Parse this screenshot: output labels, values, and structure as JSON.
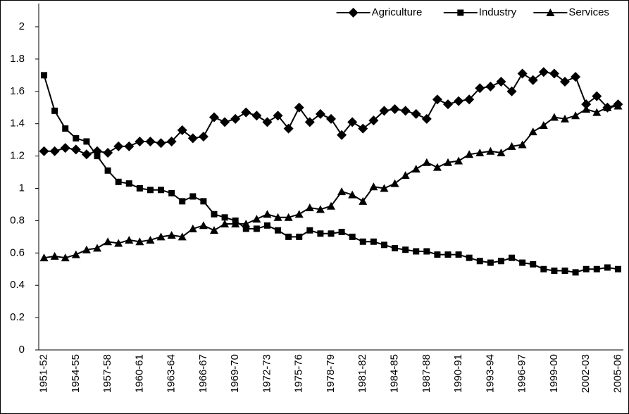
{
  "chart_data": {
    "type": "line",
    "categories": [
      "1951-52",
      null,
      null,
      "1954-55",
      null,
      null,
      "1957-58",
      null,
      null,
      "1960-61",
      null,
      null,
      "1963-64",
      null,
      null,
      "1966-67",
      null,
      null,
      "1969-70",
      null,
      null,
      "1972-73",
      null,
      null,
      "1975-76",
      null,
      null,
      "1978-79",
      null,
      null,
      "1981-82",
      null,
      null,
      "1984-85",
      null,
      null,
      "1987-88",
      null,
      null,
      "1990-91",
      null,
      null,
      "1993-94",
      null,
      null,
      "1996-97",
      null,
      null,
      "1999-00",
      null,
      null,
      "2002-03",
      null,
      null,
      "2005-06"
    ],
    "series": [
      {
        "name": "Agriculture",
        "color": "#000000",
        "marker": "diamond",
        "values": [
          1.23,
          1.23,
          1.25,
          1.24,
          1.21,
          1.23,
          1.22,
          1.26,
          1.26,
          1.29,
          1.29,
          1.28,
          1.29,
          1.36,
          1.31,
          1.32,
          1.44,
          1.41,
          1.43,
          1.47,
          1.45,
          1.41,
          1.45,
          1.37,
          1.5,
          1.41,
          1.46,
          1.43,
          1.33,
          1.41,
          1.37,
          1.42,
          1.48,
          1.49,
          1.48,
          1.46,
          1.43,
          1.55,
          1.52,
          1.54,
          1.55,
          1.62,
          1.63,
          1.66,
          1.6,
          1.71,
          1.67,
          1.72,
          1.71,
          1.66,
          1.69,
          1.52,
          1.57,
          1.5,
          1.52
        ]
      },
      {
        "name": "Industry",
        "color": "#000000",
        "marker": "square",
        "values": [
          1.7,
          1.48,
          1.37,
          1.31,
          1.29,
          1.2,
          1.11,
          1.04,
          1.03,
          1.0,
          0.99,
          0.99,
          0.97,
          0.92,
          0.95,
          0.92,
          0.84,
          0.82,
          0.8,
          0.75,
          0.75,
          0.77,
          0.74,
          0.7,
          0.7,
          0.74,
          0.72,
          0.72,
          0.73,
          0.7,
          0.67,
          0.67,
          0.65,
          0.63,
          0.62,
          0.61,
          0.61,
          0.59,
          0.59,
          0.59,
          0.57,
          0.55,
          0.54,
          0.55,
          0.57,
          0.54,
          0.53,
          0.5,
          0.49,
          0.49,
          0.48,
          0.5,
          0.5,
          0.51,
          0.5
        ]
      },
      {
        "name": "Services",
        "color": "#000000",
        "marker": "triangle",
        "values": [
          0.57,
          0.58,
          0.57,
          0.59,
          0.62,
          0.63,
          0.67,
          0.66,
          0.68,
          0.67,
          0.68,
          0.7,
          0.71,
          0.7,
          0.75,
          0.77,
          0.74,
          0.78,
          0.78,
          0.78,
          0.81,
          0.84,
          0.82,
          0.82,
          0.84,
          0.88,
          0.87,
          0.89,
          0.98,
          0.96,
          0.92,
          1.01,
          1.0,
          1.03,
          1.08,
          1.12,
          1.16,
          1.13,
          1.16,
          1.17,
          1.21,
          1.22,
          1.23,
          1.22,
          1.26,
          1.27,
          1.35,
          1.39,
          1.44,
          1.43,
          1.45,
          1.49,
          1.47,
          1.5,
          1.51
        ]
      }
    ],
    "ylim": [
      0,
      2
    ],
    "yticks": [
      0,
      0.2,
      0.4,
      0.6,
      0.8,
      1,
      1.2,
      1.4,
      1.6,
      1.8,
      2
    ],
    "grid": false,
    "legend": "top-right"
  }
}
